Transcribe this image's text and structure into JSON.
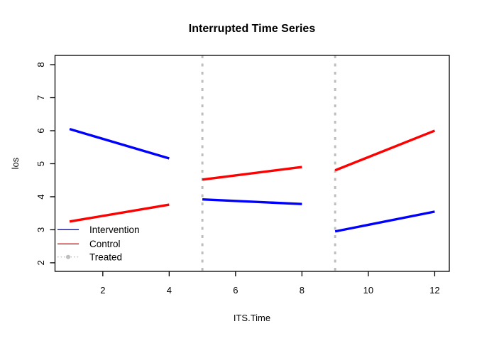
{
  "title": "Interrupted Time Series",
  "chart_data": {
    "type": "line",
    "title": "Interrupted Time Series",
    "xlabel": "ITS.Time",
    "ylabel": "los",
    "xlim": [
      0.56,
      12.44
    ],
    "ylim": [
      1.74,
      8.28
    ],
    "x_ticks": [
      2,
      4,
      6,
      8,
      10,
      12
    ],
    "y_ticks": [
      2,
      3,
      4,
      5,
      6,
      7,
      8
    ],
    "grid": false,
    "background": "#ffffff",
    "box_color": "#000000",
    "legend_position": "bottom-left",
    "series": [
      {
        "name": "Intervention",
        "color": "#0000ff",
        "style": "solid",
        "line_width": 3.4,
        "segments": [
          [
            [
              1,
              6.05
            ],
            [
              4,
              5.16
            ]
          ],
          [
            [
              5,
              3.92
            ],
            [
              8,
              3.78
            ]
          ],
          [
            [
              9,
              2.95
            ],
            [
              12,
              3.55
            ]
          ]
        ]
      },
      {
        "name": "Control",
        "color": "#ff0000",
        "style": "solid",
        "line_width": 3.4,
        "segments": [
          [
            [
              1,
              3.25
            ],
            [
              4,
              3.76
            ]
          ],
          [
            [
              5,
              4.52
            ],
            [
              8,
              4.9
            ]
          ],
          [
            [
              9,
              4.8
            ],
            [
              12,
              6.0
            ]
          ]
        ]
      },
      {
        "name": "Treated",
        "color": "#bebebe",
        "style": "dotted",
        "line_width": 3,
        "vlines": [
          5,
          9
        ],
        "marker": "circle"
      }
    ],
    "legend": [
      {
        "label": "Intervention",
        "color": "#0000ff",
        "style": "solid"
      },
      {
        "label": "Control",
        "color": "#ff0000",
        "style": "solid"
      },
      {
        "label": "Treated",
        "color": "#bebebe",
        "style": "dotted-marker"
      }
    ]
  }
}
